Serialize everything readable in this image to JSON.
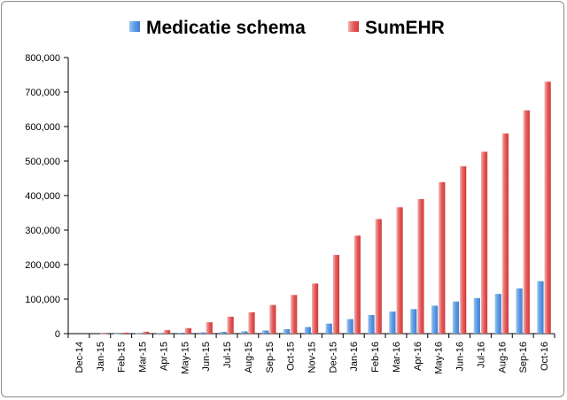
{
  "chart_data": {
    "type": "bar",
    "categories": [
      "Dec-14",
      "Jan-15",
      "Feb-15",
      "Mar-15",
      "Apr-15",
      "May-15",
      "Jun-15",
      "Jul-15",
      "Aug-15",
      "Sep-15",
      "Oct-15",
      "Nov-15",
      "Dec-15",
      "Jan-16",
      "Feb-16",
      "Mar-16",
      "Apr-16",
      "May-16",
      "Jun-16",
      "Jul-16",
      "Aug-16",
      "Sep-16",
      "Oct-16"
    ],
    "series": [
      {
        "name": "Medicatie schema",
        "color": "#6fa8e8",
        "values": [
          0,
          0,
          300,
          700,
          1500,
          2500,
          3500,
          5000,
          6500,
          9000,
          13000,
          19000,
          29000,
          42000,
          54000,
          64000,
          71000,
          81000,
          93000,
          103000,
          115000,
          131000,
          152000
        ]
      },
      {
        "name": "SumEHR",
        "color": "#e96c6c",
        "values": [
          0,
          500,
          3000,
          5500,
          10000,
          16000,
          33000,
          49000,
          62000,
          83000,
          112000,
          145000,
          228000,
          284000,
          332000,
          366000,
          390000,
          439000,
          485000,
          527000,
          580000,
          647000,
          730000
        ]
      }
    ],
    "title": "",
    "xlabel": "",
    "ylabel": "",
    "ylim": [
      0,
      800000
    ],
    "yticks": [
      "0",
      "100,000",
      "200,000",
      "300,000",
      "400,000",
      "500,000",
      "600,000",
      "700,000",
      "800,000"
    ],
    "legend_position": "top",
    "grid": false
  }
}
